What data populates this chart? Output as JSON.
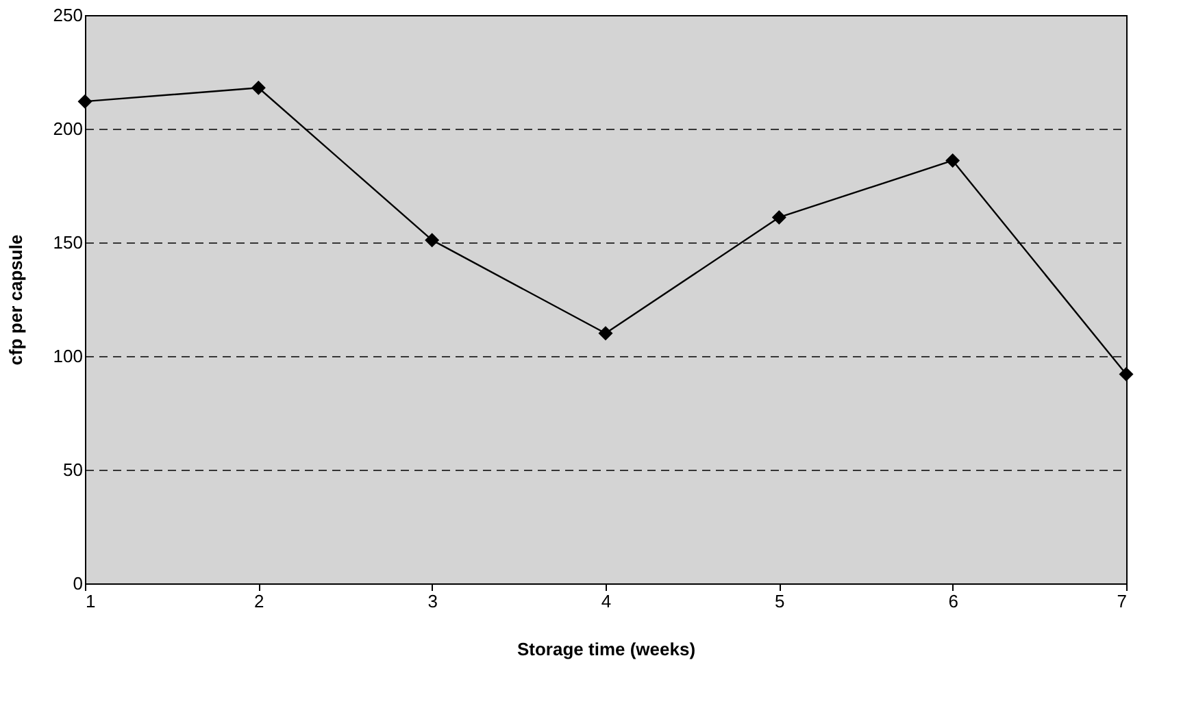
{
  "chart_data": {
    "type": "line",
    "xlabel": "Storage time (weeks)",
    "ylabel": "cfp per capsule",
    "x": [
      1,
      2,
      3,
      4,
      5,
      6,
      7
    ],
    "series": [
      {
        "color": "#000000",
        "values": [
          212,
          218,
          151,
          110,
          161,
          186,
          92
        ]
      }
    ],
    "xlim": [
      1,
      7
    ],
    "xticks": [
      1,
      2,
      3,
      4,
      5,
      6,
      7
    ],
    "ylim": [
      0,
      250
    ],
    "yticks": [
      0,
      50,
      100,
      150,
      200,
      250
    ],
    "grid": "y",
    "marker": "diamond",
    "line_style": "solid"
  }
}
